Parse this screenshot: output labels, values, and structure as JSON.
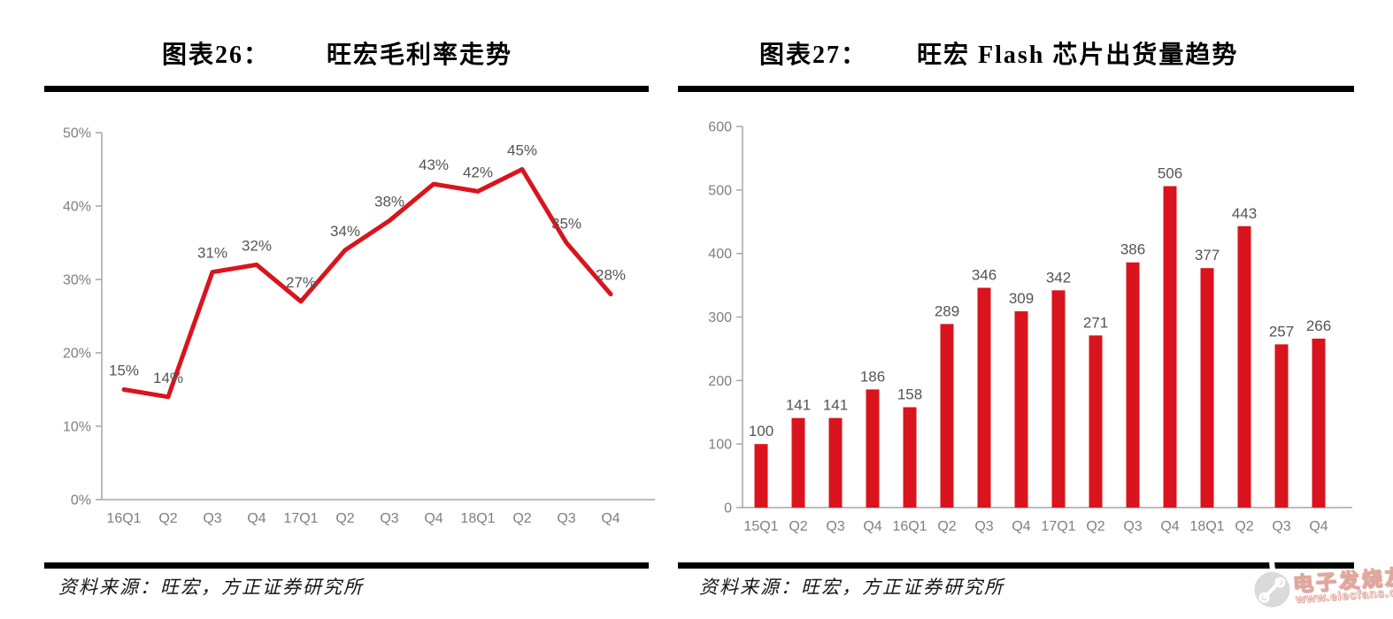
{
  "panels": [
    {
      "figure_label": "图表26：",
      "title": "旺宏毛利率走势",
      "source": "资料来源：旺宏，方正证券研究所"
    },
    {
      "figure_label": "图表27：",
      "title": "旺宏 Flash 芯片出货量趋势",
      "source": "资料来源：旺宏，方正证券研究所"
    }
  ],
  "chart_data": [
    {
      "type": "line",
      "title": "旺宏毛利率走势",
      "categories": [
        "16Q1",
        "Q2",
        "Q3",
        "Q4",
        "17Q1",
        "Q2",
        "Q3",
        "Q4",
        "18Q1",
        "Q2",
        "Q3",
        "Q4"
      ],
      "values": [
        15,
        14,
        31,
        32,
        27,
        34,
        38,
        43,
        42,
        45,
        35,
        28
      ],
      "unit": "%",
      "xlabel": "",
      "ylabel": "",
      "ylim": [
        0,
        50
      ],
      "ytick_step": 10,
      "color": "#d9141e",
      "grid": false,
      "legend_position": "none",
      "data_labels": true
    },
    {
      "type": "bar",
      "title": "旺宏 Flash 芯片出货量趋势",
      "categories": [
        "15Q1",
        "Q2",
        "Q3",
        "Q4",
        "16Q1",
        "Q2",
        "Q3",
        "Q4",
        "17Q1",
        "Q2",
        "Q3",
        "Q4",
        "18Q1",
        "Q2",
        "Q3",
        "Q4"
      ],
      "values": [
        100,
        141,
        141,
        186,
        158,
        289,
        346,
        309,
        342,
        271,
        386,
        506,
        377,
        443,
        257,
        266
      ],
      "unit": "",
      "xlabel": "",
      "ylabel": "",
      "ylim": [
        0,
        600
      ],
      "ytick_step": 100,
      "color": "#d9141e",
      "grid": false,
      "legend_position": "none",
      "data_labels": true
    }
  ],
  "axis_colors": {
    "line": "#a6a6a6",
    "tick_label": "#7f7f7f",
    "data_label": "#545454"
  },
  "watermark": {
    "brand": "电子发烧友",
    "url": "www.elecfans.com",
    "color": "#dfa89f"
  }
}
